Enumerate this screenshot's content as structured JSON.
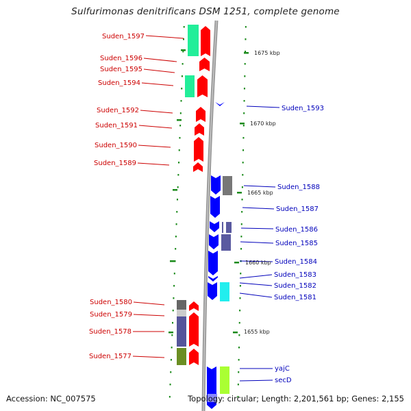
{
  "title": "Sulfurimonas denitrificans DSM 1251, complete genome",
  "accession": "Accession: NC_007575",
  "topology": "Topology: circular; Length: 2,201,561 bp; Genes: 2,155",
  "colors": {
    "left_label": "#cc0000",
    "right_label": "#0000bb",
    "forward_gene": "#ff0000",
    "reverse_gene": "#0000ff",
    "backbone": "#888888",
    "tick": "#1a8a1a"
  },
  "scale_labels": [
    "1675 kbp",
    "1670 kbp",
    "1665 kbp",
    "1660 kbp",
    "1655 kbp"
  ],
  "left_labels": [
    "Suden_1597",
    "Suden_1596",
    "Suden_1595",
    "Suden_1594",
    "Suden_1592",
    "Suden_1591",
    "Suden_1590",
    "Suden_1589",
    "Suden_1580",
    "Suden_1579",
    "Suden_1578",
    "Suden_1577"
  ],
  "right_labels": [
    "Suden_1593",
    "Suden_1588",
    "Suden_1587",
    "Suden_1586",
    "Suden_1585",
    "Suden_1584",
    "Suden_1583",
    "Suden_1582",
    "Suden_1581",
    "yajC",
    "secD"
  ]
}
